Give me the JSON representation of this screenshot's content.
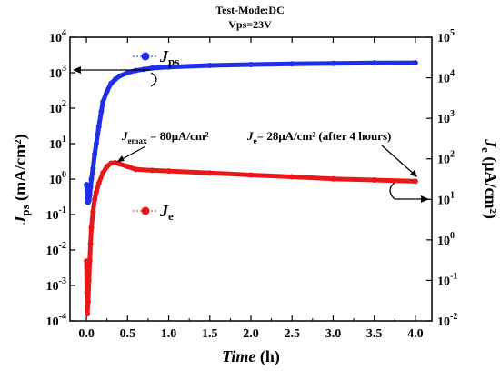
{
  "chart_data": {
    "type": "scatter",
    "title": [
      "Test-Mode:DC",
      "Vps=23V"
    ],
    "xlabel": {
      "main": "Time",
      "unit": "(h)"
    },
    "ylabel_left": {
      "symbol": "J",
      "sub": "ps",
      "unit": "(mA/cm²)"
    },
    "ylabel_right": {
      "symbol": "J",
      "sub": "e",
      "unit": "(μA/cm²)"
    },
    "xlim": [
      -0.2,
      4.2
    ],
    "xticks": [
      0.0,
      0.5,
      1.0,
      1.5,
      2.0,
      2.5,
      3.0,
      3.5,
      4.0
    ],
    "xtick_labels": [
      "0.0",
      "0.5",
      "1.0",
      "1.5",
      "2.0",
      "2.5",
      "3.0",
      "3.5",
      "4.0"
    ],
    "left_axis": {
      "scale": "log",
      "exp_min": -4,
      "exp_max": 4
    },
    "right_axis": {
      "scale": "log",
      "exp_min": -2,
      "exp_max": 5
    },
    "series": [
      {
        "name": "Jps",
        "axis": "left",
        "color": "#1f2eea",
        "points": [
          [
            0.0,
            0.7
          ],
          [
            0.01,
            0.3
          ],
          [
            0.02,
            0.22
          ],
          [
            0.03,
            0.25
          ],
          [
            0.04,
            0.35
          ],
          [
            0.05,
            0.6
          ],
          [
            0.06,
            1.0
          ],
          [
            0.08,
            2.0
          ],
          [
            0.1,
            5
          ],
          [
            0.12,
            10
          ],
          [
            0.15,
            30
          ],
          [
            0.18,
            80
          ],
          [
            0.2,
            150
          ],
          [
            0.25,
            300
          ],
          [
            0.3,
            500
          ],
          [
            0.35,
            650
          ],
          [
            0.4,
            800
          ],
          [
            0.5,
            1000
          ],
          [
            0.6,
            1150
          ],
          [
            0.7,
            1250
          ],
          [
            0.8,
            1350
          ],
          [
            1.0,
            1450
          ],
          [
            1.5,
            1600
          ],
          [
            2.0,
            1700
          ],
          [
            2.5,
            1780
          ],
          [
            3.0,
            1830
          ],
          [
            3.5,
            1880
          ],
          [
            4.0,
            1900
          ]
        ]
      },
      {
        "name": "Je",
        "axis": "right",
        "color": "#e81818",
        "points": [
          [
            0.0,
            0.3
          ],
          [
            0.005,
            0.05
          ],
          [
            0.01,
            0.015
          ],
          [
            0.02,
            0.03
          ],
          [
            0.03,
            0.1
          ],
          [
            0.04,
            0.3
          ],
          [
            0.05,
            0.8
          ],
          [
            0.06,
            2
          ],
          [
            0.08,
            5
          ],
          [
            0.1,
            10
          ],
          [
            0.12,
            15
          ],
          [
            0.15,
            25
          ],
          [
            0.2,
            45
          ],
          [
            0.25,
            65
          ],
          [
            0.3,
            78
          ],
          [
            0.35,
            80
          ],
          [
            0.4,
            75
          ],
          [
            0.5,
            65
          ],
          [
            0.6,
            55
          ],
          [
            0.8,
            52
          ],
          [
            1.0,
            50
          ],
          [
            1.5,
            45
          ],
          [
            2.0,
            40
          ],
          [
            2.5,
            36
          ],
          [
            3.0,
            32
          ],
          [
            3.5,
            30
          ],
          [
            4.0,
            28
          ]
        ]
      }
    ],
    "legend": [
      {
        "symbol": "J",
        "sub": "ps",
        "color": "#1f2eea"
      },
      {
        "symbol": "J",
        "sub": "e",
        "color": "#e81818"
      }
    ],
    "annotations": [
      {
        "id": "emax",
        "parts": [
          "J",
          "emax",
          " = 80μA/cm²"
        ]
      },
      {
        "id": "je4h",
        "parts": [
          "J",
          "e",
          "= 28μA/cm² (after 4 hours)"
        ]
      }
    ]
  }
}
